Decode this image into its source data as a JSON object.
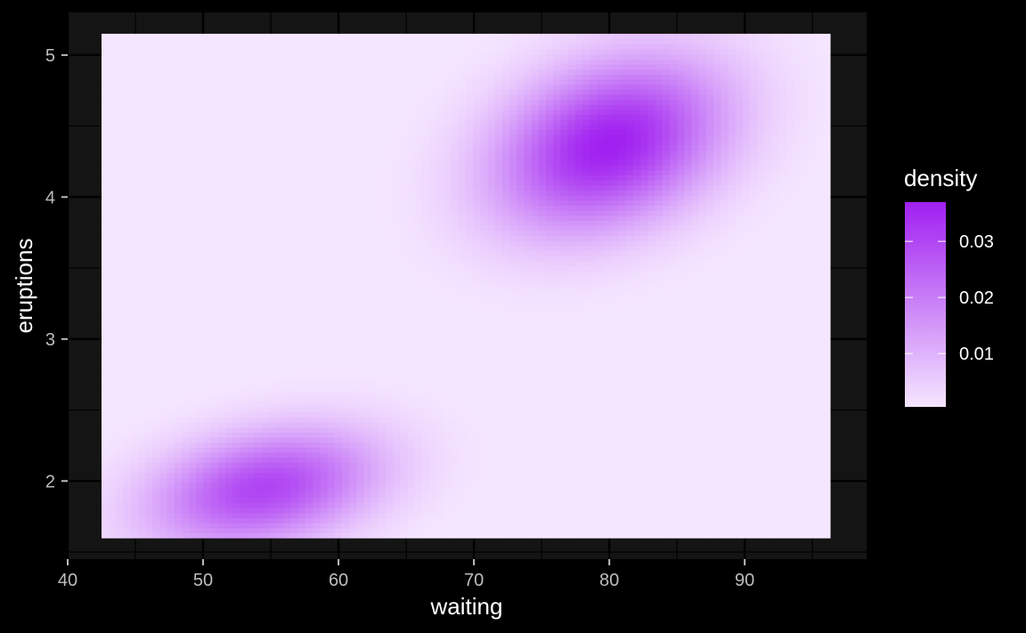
{
  "chart_data": {
    "type": "heatmap",
    "title": "",
    "xlabel": "waiting",
    "ylabel": "eruptions",
    "xlim": [
      40,
      99
    ],
    "ylim": [
      1.45,
      5.3
    ],
    "x_ticks": [
      40,
      50,
      60,
      70,
      80,
      90
    ],
    "y_ticks": [
      2,
      3,
      4,
      5
    ],
    "raster_x_range": [
      42.5,
      96.3
    ],
    "raster_y_range": [
      1.6,
      5.15
    ],
    "grid": true,
    "legend": {
      "title": "density",
      "position": "right",
      "range": [
        0.0005,
        0.037
      ],
      "ticks": [
        0.01,
        0.02,
        0.03
      ],
      "tick_labels": [
        "0.01",
        "0.02",
        "0.03"
      ]
    },
    "density_components": [
      {
        "weight": 0.36,
        "mean_waiting": 54.5,
        "mean_eruptions": 1.95,
        "sd_waiting": 5.9,
        "sd_eruptions": 0.29,
        "rho": 0.3
      },
      {
        "weight": 0.64,
        "mean_waiting": 80.0,
        "mean_eruptions": 4.37,
        "sd_waiting": 5.9,
        "sd_eruptions": 0.42,
        "rho": 0.3
      }
    ],
    "peak_density": 0.037,
    "colors": {
      "low": "#f5e6ff",
      "high": "#a020f0",
      "panel_background": "#141414",
      "grid_major": "#000000",
      "grid_minor": "#000000",
      "page_background": "#000000"
    }
  }
}
